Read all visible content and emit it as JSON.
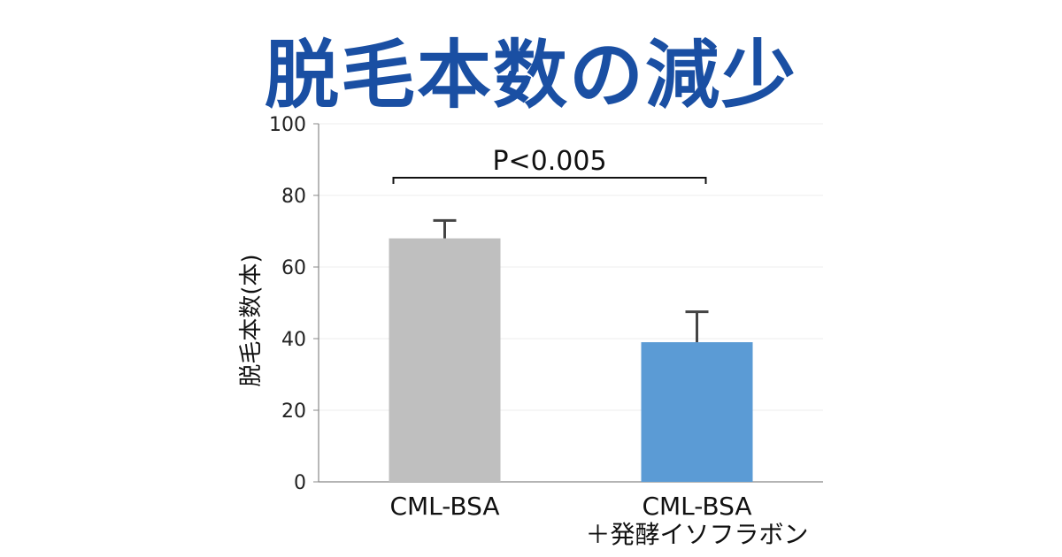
{
  "title": "脱毛本数の減少",
  "chart_data": {
    "type": "bar",
    "categories": [
      "CML-BSA",
      "CML-BSA ＋発酵イソフラボン"
    ],
    "category_lines": [
      [
        "CML-BSA"
      ],
      [
        "CML-BSA",
        "＋発酵イソフラボン"
      ]
    ],
    "values": [
      68,
      39
    ],
    "errors": [
      5,
      8.5
    ],
    "bar_colors": [
      "#bfbfbf",
      "#5b9bd5"
    ],
    "ylabel": "脱毛本数(本)",
    "xlabel": "",
    "ylim": [
      0,
      100
    ],
    "yticks": [
      "0",
      "20",
      "40",
      "60",
      "80",
      "100"
    ],
    "grid": true,
    "annotation": "P<0.005"
  },
  "colors": {
    "title": "#1a4fa3",
    "error_bar": "#444444"
  }
}
